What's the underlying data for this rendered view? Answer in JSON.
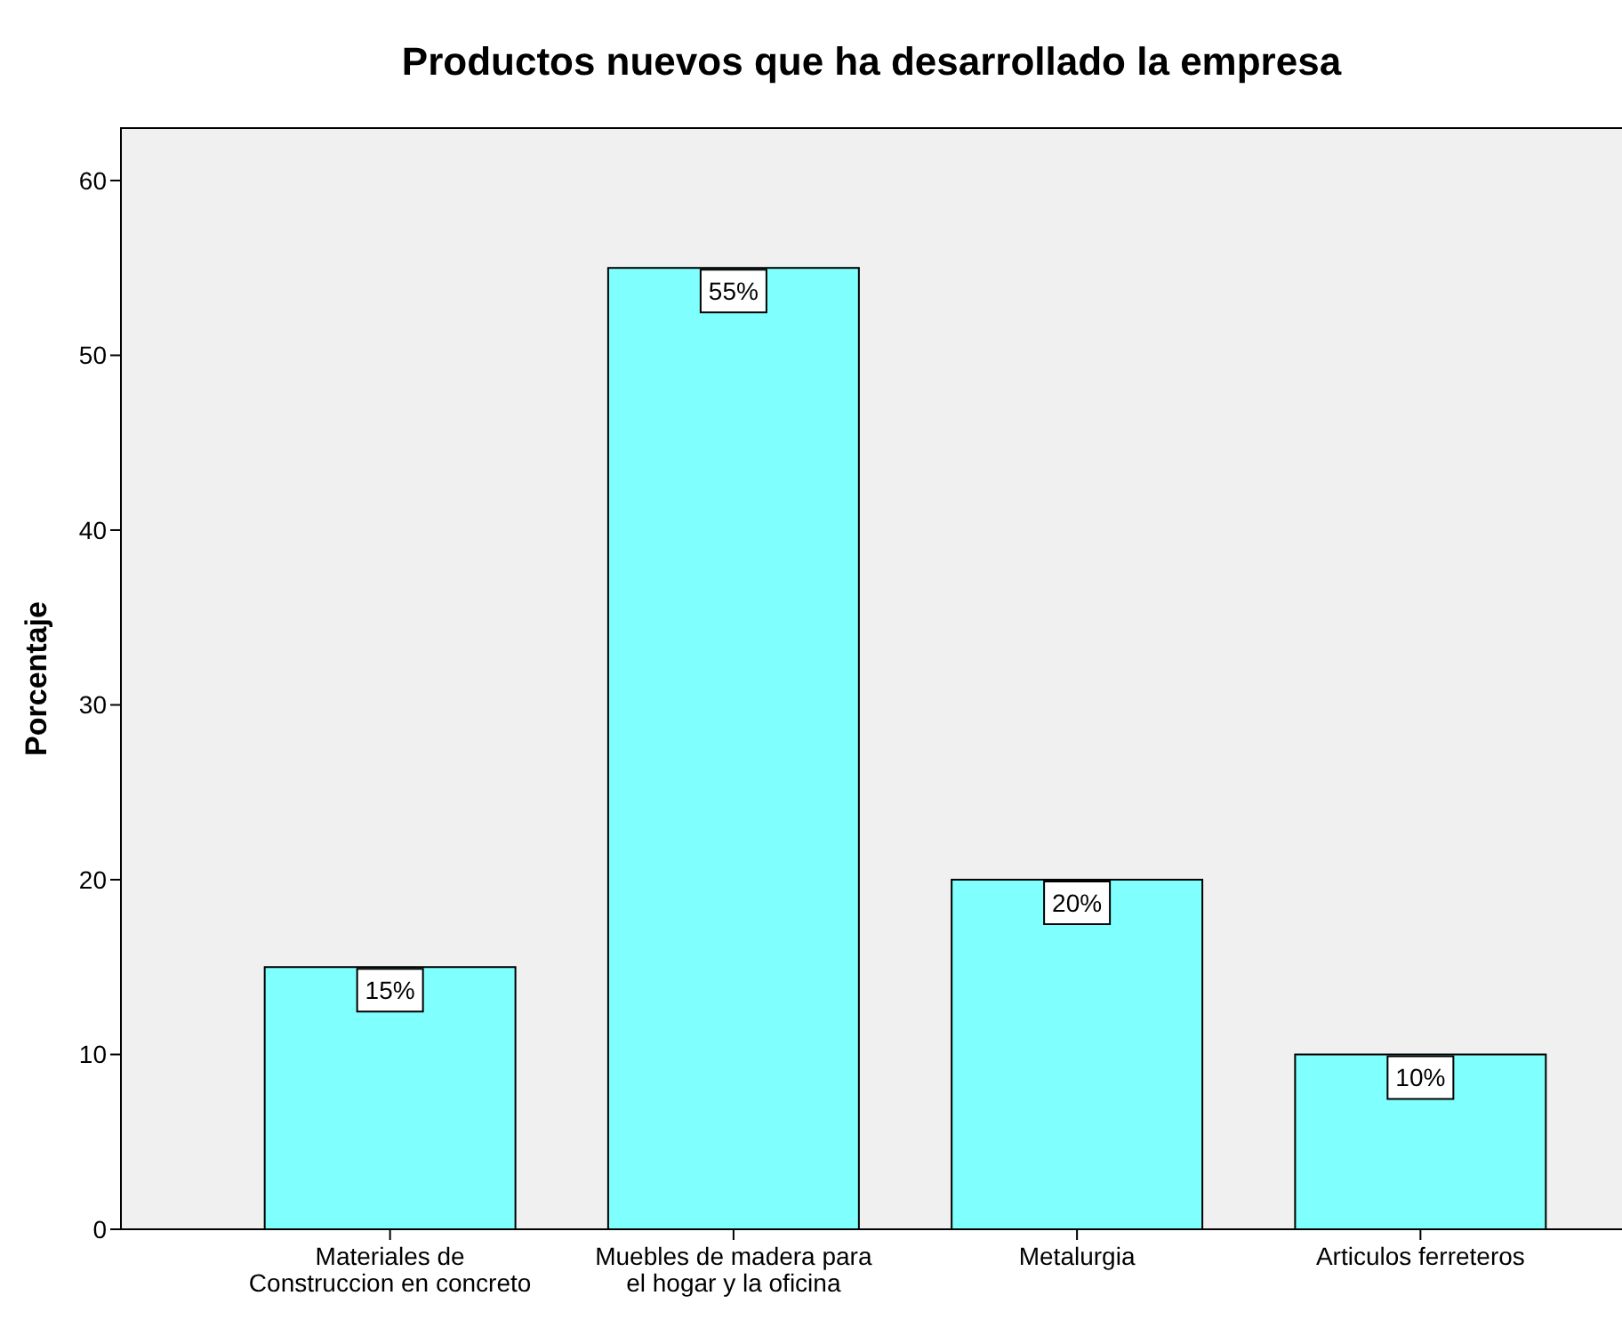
{
  "chart_data": {
    "type": "bar",
    "title": "Productos nuevos que ha desarrollado la empresa",
    "ylabel": "Porcentaje",
    "categories": [
      "Materiales de Construccion en concreto",
      "Muebles de madera para el hogar y la oficina",
      "Metalurgia",
      "Articulos ferreteros"
    ],
    "values": [
      15,
      55,
      20,
      10
    ],
    "color": "#80ffff",
    "value_labels": [
      "15%",
      "55%",
      "20%",
      "10%"
    ],
    "ylim": [
      0,
      63
    ],
    "yticks": [
      0,
      10,
      20,
      30,
      40,
      50,
      60
    ],
    "grid": false
  }
}
